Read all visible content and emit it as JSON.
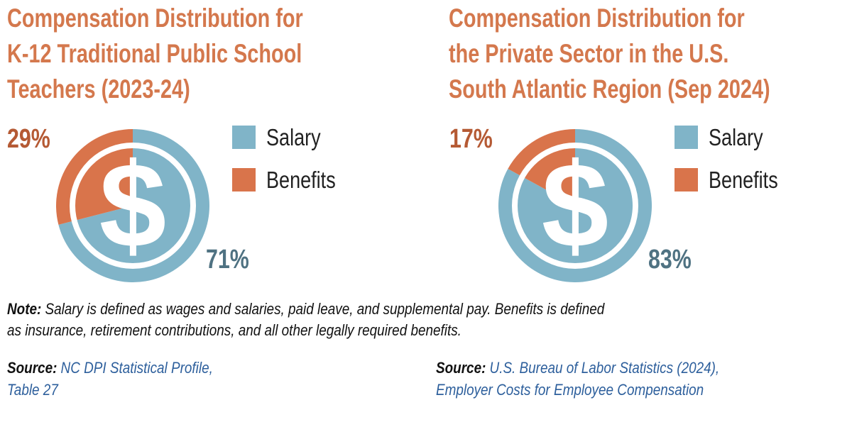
{
  "chart_data": [
    {
      "type": "pie",
      "title": [
        "Compensation Distribution for",
        "K-12 Traditional Public School",
        "Teachers (2023-24)"
      ],
      "categories": [
        "Salary",
        "Benefits"
      ],
      "values": [
        71,
        29
      ],
      "value_labels": [
        "71%",
        "29%"
      ],
      "colors": [
        "#80b4c8",
        "#d9744b"
      ],
      "legend": "right"
    },
    {
      "type": "pie",
      "title": [
        "Compensation Distribution for",
        "the Private Sector in the U.S.",
        "South Atlantic Region (Sep 2024)"
      ],
      "categories": [
        "Salary",
        "Benefits"
      ],
      "values": [
        83,
        17
      ],
      "value_labels": [
        "83%",
        "17%"
      ],
      "colors": [
        "#80b4c8",
        "#d9744b"
      ],
      "legend": "right"
    }
  ],
  "note": {
    "label": "Note:",
    "lines": [
      "Salary is defined as wages and salaries, paid leave, and supplemental pay. Benefits is defined",
      "as insurance, retirement contributions, and all other legally required benefits."
    ]
  },
  "sources": [
    {
      "label": "Source:",
      "lines": [
        "NC DPI Statistical Profile,",
        "Table 27"
      ]
    },
    {
      "label": "Source:",
      "lines": [
        "U.S. Bureau of Labor Statistics (2024),",
        "Employer Costs for Employee Compensation"
      ]
    }
  ]
}
